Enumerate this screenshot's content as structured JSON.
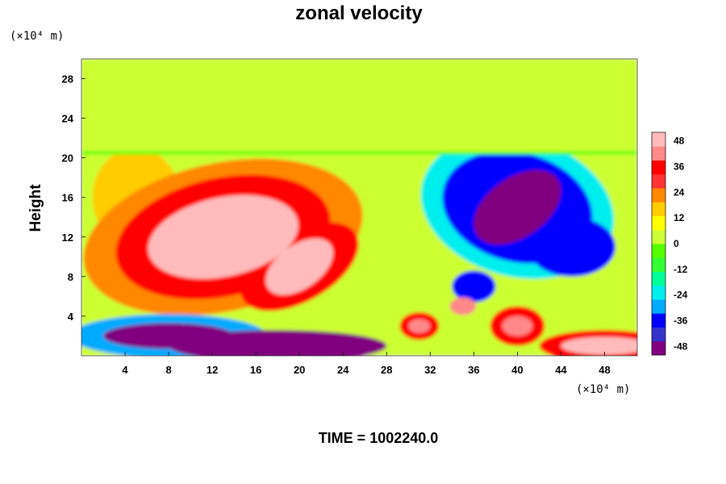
{
  "chart_data": {
    "type": "heatmap",
    "title": "zonal velocity",
    "ylabel": "Height",
    "x_unit_label": "(×10⁴ m)",
    "y_unit_label": "(×10⁴ m)",
    "time_label": "TIME = 1002240.0",
    "xlim": [
      0,
      51
    ],
    "ylim": [
      0,
      30
    ],
    "x_ticks": [
      4,
      8,
      12,
      16,
      20,
      24,
      28,
      32,
      36,
      40,
      44,
      48
    ],
    "y_ticks": [
      4,
      8,
      12,
      16,
      20,
      24,
      28
    ],
    "colorbar": {
      "range": [
        -52,
        52
      ],
      "ticks": [
        48,
        36,
        24,
        12,
        0,
        -12,
        -24,
        -36,
        -48
      ],
      "colors": [
        "#800080",
        "#3333cc",
        "#0000ff",
        "#00aaff",
        "#00eeee",
        "#00ff99",
        "#33ff33",
        "#55ff00",
        "#ccff33",
        "#ffff00",
        "#ffcc00",
        "#ff8800",
        "#ff3333",
        "#ff0000",
        "#ff8888",
        "#ffbbbb"
      ]
    },
    "field_features": [
      {
        "name": "upper-layer",
        "x": [
          0,
          51
        ],
        "y": [
          20.5,
          30
        ],
        "value": 0
      },
      {
        "name": "strong-positive-core",
        "x": 13,
        "y": 12,
        "value": 50
      },
      {
        "name": "positive-lobe-mid",
        "x": 20,
        "y": 9,
        "value": 46
      },
      {
        "name": "positive-west",
        "x": 5,
        "y": 16,
        "value": 34
      },
      {
        "name": "negative-core",
        "x": 40,
        "y": 15,
        "value": -48
      },
      {
        "name": "negative-east",
        "x": 45,
        "y": 11,
        "value": -36
      },
      {
        "name": "negative-lower",
        "x": 36,
        "y": 7,
        "value": -36
      },
      {
        "name": "negative-bottom-left",
        "x": 8,
        "y": 2,
        "value": -50
      },
      {
        "name": "negative-bottom-mid",
        "x": 18,
        "y": 1,
        "value": -48
      },
      {
        "name": "positive-patch-bottom-right",
        "x": 48,
        "y": 1,
        "value": 46
      },
      {
        "name": "positive-patch-40",
        "x": 40,
        "y": 3,
        "value": 44
      },
      {
        "name": "positive-patch-31",
        "x": 31,
        "y": 3,
        "value": 40
      },
      {
        "name": "positive-patch-35",
        "x": 35,
        "y": 5,
        "value": 40
      },
      {
        "name": "mixed-center",
        "x": 28,
        "y": 10,
        "value": 4
      }
    ]
  }
}
